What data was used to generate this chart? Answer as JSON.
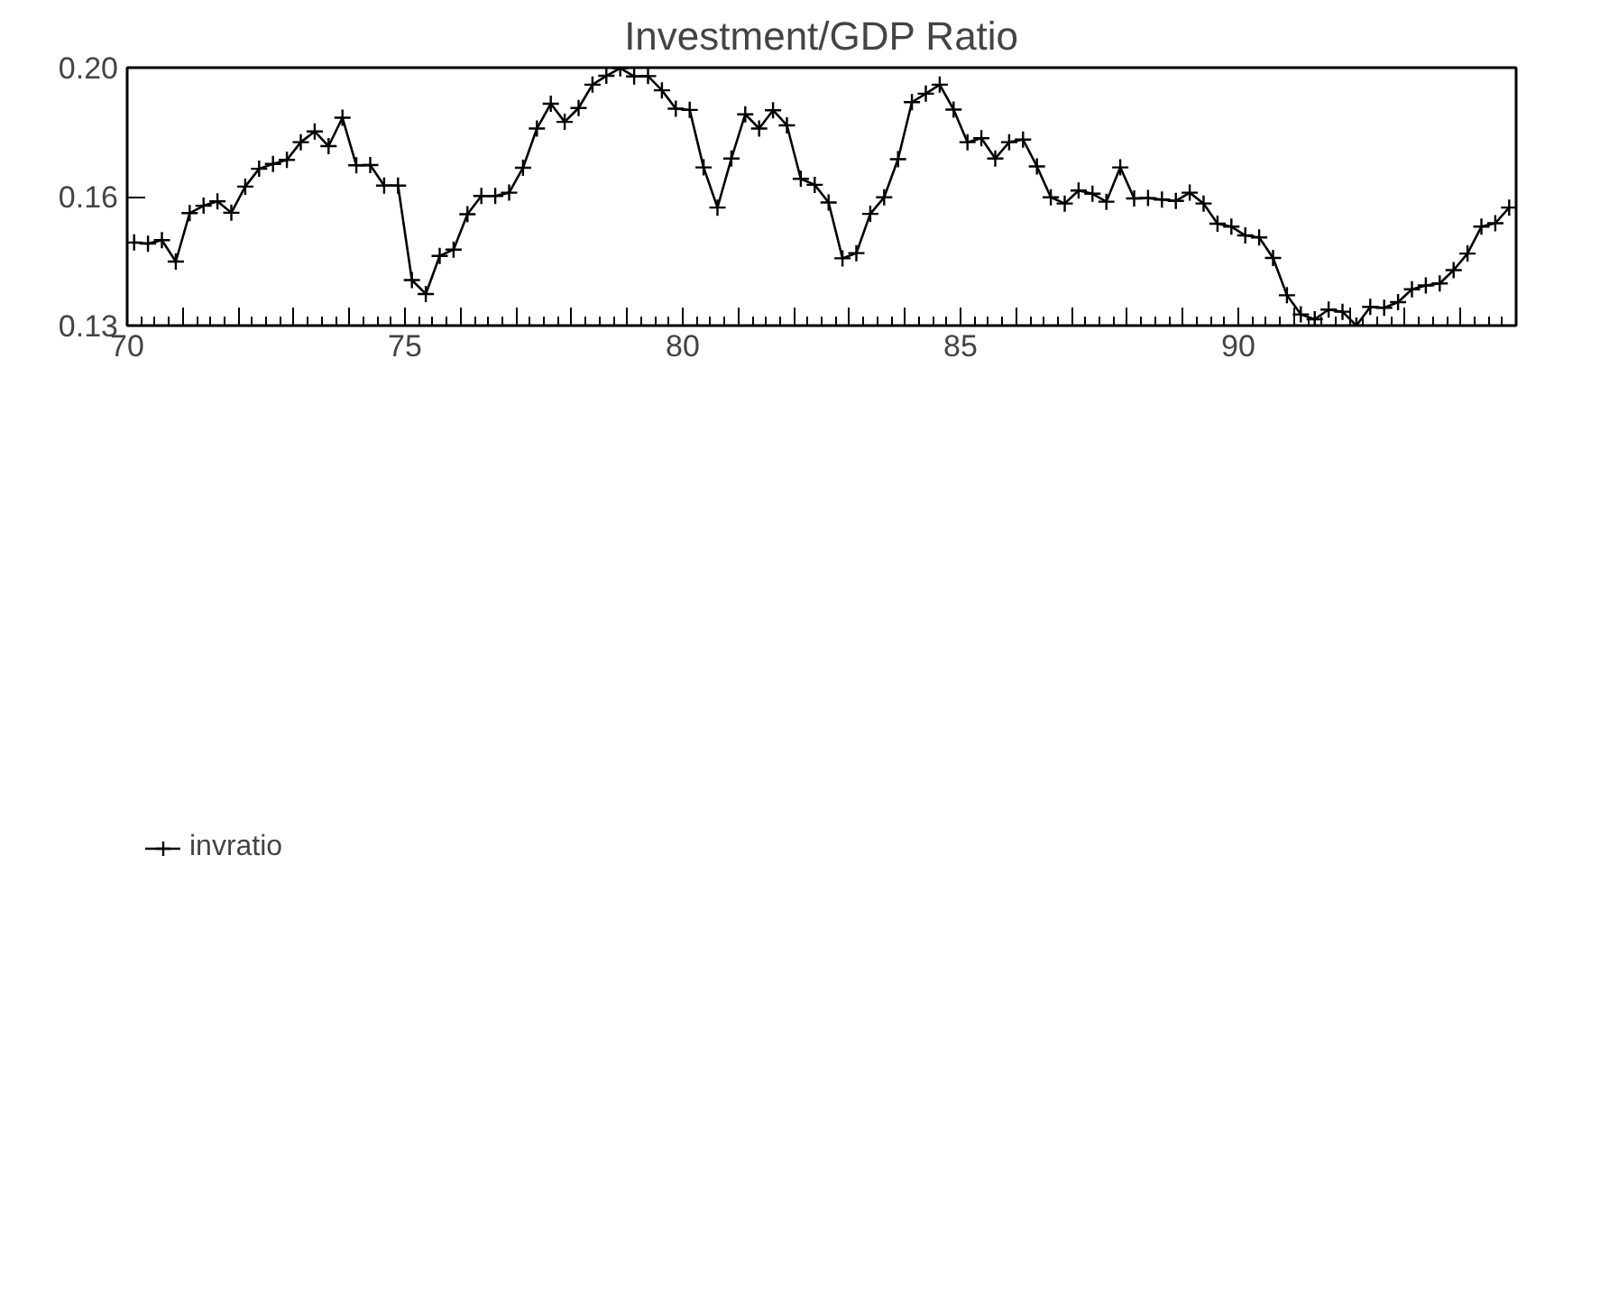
{
  "chart_data": {
    "type": "line",
    "title": "Investment/GDP Ratio",
    "x": [
      70.125,
      70.375,
      70.625,
      70.875,
      71.125,
      71.375,
      71.625,
      71.875,
      72.125,
      72.375,
      72.625,
      72.875,
      73.125,
      73.375,
      73.625,
      73.875,
      74.125,
      74.375,
      74.625,
      74.875,
      75.125,
      75.375,
      75.625,
      75.875,
      76.125,
      76.375,
      76.625,
      76.875,
      77.125,
      77.375,
      77.625,
      77.875,
      78.125,
      78.375,
      78.625,
      78.875,
      79.125,
      79.375,
      79.625,
      79.875,
      80.125,
      80.375,
      80.625,
      80.875,
      81.125,
      81.375,
      81.625,
      81.875,
      82.125,
      82.375,
      82.625,
      82.875,
      83.125,
      83.375,
      83.625,
      83.875,
      84.125,
      84.375,
      84.625,
      84.875,
      85.125,
      85.375,
      85.625,
      85.875,
      86.125,
      86.375,
      86.625,
      86.875,
      87.125,
      87.375,
      87.625,
      87.875,
      88.125,
      88.375,
      88.625,
      88.875,
      89.125,
      89.375,
      89.625,
      89.875,
      90.125,
      90.375,
      90.625,
      90.875,
      91.125,
      91.375,
      91.625,
      91.875,
      92.125,
      92.375,
      92.625,
      92.875,
      93.125,
      93.375,
      93.625,
      93.875,
      94.125,
      94.375,
      94.625,
      94.875
    ],
    "series": [
      {
        "name": "invratio",
        "color": "#000000",
        "values": [
          0.1478,
          0.1475,
          0.1484,
          0.143,
          0.1555,
          0.1575,
          0.1587,
          0.1556,
          0.1628,
          0.1679,
          0.1693,
          0.1705,
          0.1758,
          0.1791,
          0.1746,
          0.1834,
          0.1689,
          0.169,
          0.1631,
          0.1631,
          0.1385,
          0.1352,
          0.1444,
          0.146,
          0.1552,
          0.1602,
          0.1602,
          0.1611,
          0.1682,
          0.18,
          0.1879,
          0.1821,
          0.1865,
          0.1942,
          0.1972,
          0.1998,
          0.197,
          0.1971,
          0.1923,
          0.1863,
          0.1859,
          0.1683,
          0.157,
          0.1709,
          0.1845,
          0.18,
          0.1858,
          0.181,
          0.165,
          0.1633,
          0.1584,
          0.1438,
          0.1451,
          0.1553,
          0.1598,
          0.1707,
          0.1884,
          0.1912,
          0.1942,
          0.186,
          0.1758,
          0.177,
          0.1709,
          0.1758,
          0.1766,
          0.1686,
          0.1598,
          0.1581,
          0.1617,
          0.1608,
          0.1586,
          0.1683,
          0.1595,
          0.1596,
          0.1592,
          0.1588,
          0.1611,
          0.1581,
          0.1527,
          0.1519,
          0.1496,
          0.1491,
          0.1439,
          0.1349,
          0.1305,
          0.1294,
          0.1316,
          0.1311,
          0.128,
          0.1322,
          0.132,
          0.1333,
          0.1363,
          0.1372,
          0.1377,
          0.1409,
          0.145,
          0.1519,
          0.1528,
          0.157
        ]
      }
    ],
    "xlim": [
      70,
      95
    ],
    "xticks": [
      70,
      {
        "value": 71,
        "label": null
      },
      {
        "value": 72,
        "label": null
      },
      {
        "value": 73,
        "label": null
      },
      {
        "value": 74,
        "label": null
      },
      75,
      {
        "value": 76,
        "label": null
      },
      {
        "value": 77,
        "label": null
      },
      {
        "value": 78,
        "label": null
      },
      {
        "value": 79,
        "label": null
      },
      80,
      {
        "value": 81,
        "label": null
      },
      {
        "value": 82,
        "label": null
      },
      {
        "value": 83,
        "label": null
      },
      {
        "value": 84,
        "label": null
      },
      85,
      {
        "value": 86,
        "label": null
      },
      {
        "value": 87,
        "label": null
      },
      {
        "value": 88,
        "label": null
      },
      {
        "value": 89,
        "label": null
      },
      90,
      {
        "value": 91,
        "label": null
      },
      {
        "value": 92,
        "label": null
      },
      {
        "value": 93,
        "label": null
      },
      {
        "value": 94,
        "label": null
      },
      {
        "value": 95,
        "label": null
      }
    ],
    "ylim": [
      0.128,
      0.2
    ],
    "yticks": [
      {
        "value": 0.128,
        "label": "0.13"
      },
      0.16,
      {
        "value": 0.2,
        "label": "0.20"
      }
    ],
    "log": "y",
    "grid": false,
    "legend": "bottom left",
    "marker": "cross",
    "line_style": "solid"
  }
}
